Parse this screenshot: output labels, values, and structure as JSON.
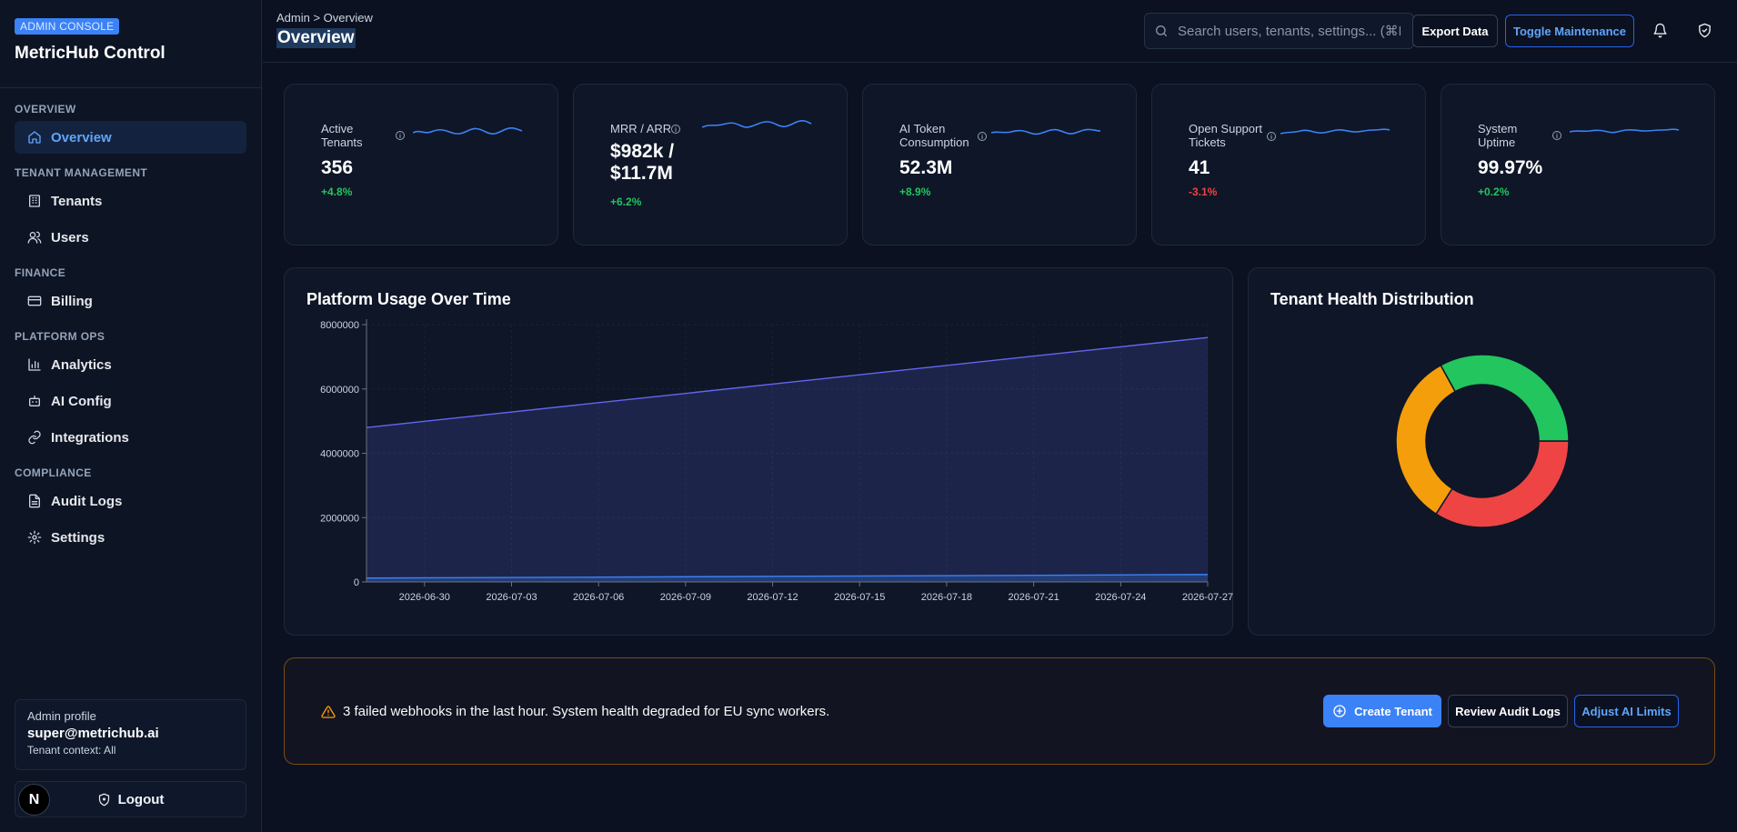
{
  "sidebar": {
    "badge": "ADMIN CONSOLE",
    "title": "MetricHub Control",
    "sections": [
      {
        "label": "OVERVIEW",
        "items": [
          {
            "label": "Overview",
            "icon": "home-icon",
            "active": true
          }
        ]
      },
      {
        "label": "TENANT MANAGEMENT",
        "items": [
          {
            "label": "Tenants",
            "icon": "building-icon"
          },
          {
            "label": "Users",
            "icon": "users-icon"
          }
        ]
      },
      {
        "label": "FINANCE",
        "items": [
          {
            "label": "Billing",
            "icon": "credit-card-icon"
          }
        ]
      },
      {
        "label": "PLATFORM OPS",
        "items": [
          {
            "label": "Analytics",
            "icon": "bar-chart-icon"
          },
          {
            "label": "AI Config",
            "icon": "bot-icon"
          },
          {
            "label": "Integrations",
            "icon": "link-icon"
          }
        ]
      },
      {
        "label": "COMPLIANCE",
        "items": [
          {
            "label": "Audit Logs",
            "icon": "file-text-icon"
          },
          {
            "label": "Settings",
            "icon": "gear-icon"
          }
        ]
      }
    ],
    "profile": {
      "label": "Admin profile",
      "email": "super@metrichub.ai",
      "context": "Tenant context: All"
    },
    "logout": "Logout",
    "avatar_letter": "N"
  },
  "header": {
    "breadcrumb": "Admin > Overview",
    "title": "Overview",
    "search_placeholder": "Search users, tenants, settings... (⌘K)",
    "export_label": "Export Data",
    "maintenance_label": "Toggle Maintenance"
  },
  "kpis": [
    {
      "label": "Active Tenants",
      "value": "356",
      "delta": "+4.8%",
      "trend": "up"
    },
    {
      "label": "MRR / ARR",
      "value": "$982k / $11.7M",
      "delta": "+6.2%",
      "trend": "up"
    },
    {
      "label": "AI Token Consumption",
      "value": "52.3M",
      "delta": "+8.9%",
      "trend": "up"
    },
    {
      "label": "Open Support Tickets",
      "value": "41",
      "delta": "-3.1%",
      "trend": "down"
    },
    {
      "label": "System Uptime",
      "value": "99.97%",
      "delta": "+0.2%",
      "trend": "up"
    }
  ],
  "usage_panel": {
    "title": "Platform Usage Over Time"
  },
  "health_panel": {
    "title": "Tenant Health Distribution"
  },
  "chart_data": [
    {
      "type": "area",
      "title": "Platform Usage Over Time",
      "xlabel": "",
      "ylabel": "",
      "x_ticks": [
        "2026-06-30",
        "2026-07-03",
        "2026-07-06",
        "2026-07-09",
        "2026-07-12",
        "2026-07-15",
        "2026-07-18",
        "2026-07-21",
        "2026-07-24",
        "2026-07-27"
      ],
      "y_ticks": [
        "0",
        "2000000",
        "4000000",
        "6000000",
        "8000000"
      ],
      "ylim": [
        0,
        8000000
      ],
      "series": [
        {
          "x": [
            "2026-06-28",
            "2026-07-27"
          ],
          "values": [
            4800000,
            7600000
          ],
          "color": "#6366f1"
        },
        {
          "x": [
            "2026-06-28",
            "2026-07-27"
          ],
          "values": [
            120000,
            230000
          ],
          "color": "#3b82f6"
        }
      ],
      "grid": true
    },
    {
      "type": "pie",
      "title": "Tenant Health Distribution",
      "donut": true,
      "slices": [
        {
          "value": 34,
          "color": "#ef4444"
        },
        {
          "value": 33,
          "color": "#f59e0b"
        },
        {
          "value": 33,
          "color": "#22c55e"
        }
      ]
    }
  ],
  "alert": {
    "text": "3 failed webhooks in the last hour. System health degraded for EU sync workers.",
    "create_label": "Create Tenant",
    "review_label": "Review Audit Logs",
    "adjust_label": "Adjust AI Limits"
  },
  "colors": {
    "accent": "#3b82f6",
    "positive": "#22c55e",
    "negative": "#ef4444",
    "warning": "#f59e0b"
  }
}
